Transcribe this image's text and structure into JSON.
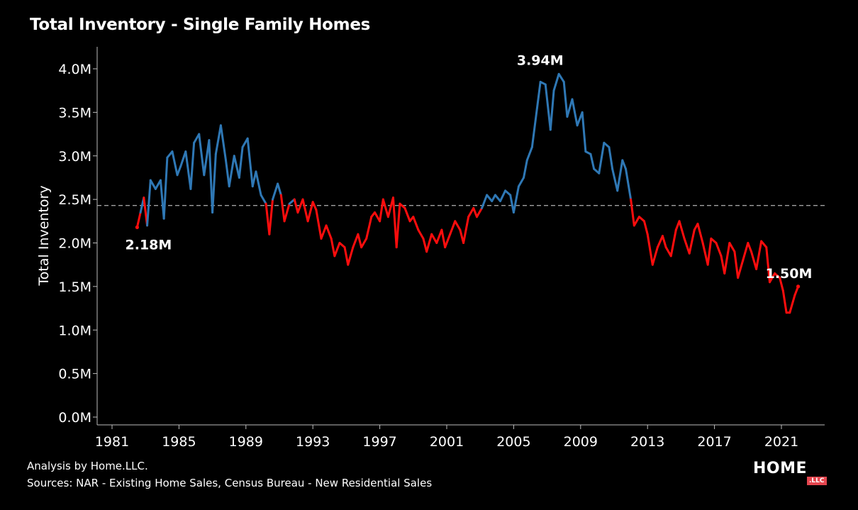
{
  "chart_data": {
    "type": "line",
    "title": "Total Inventory - Single Family Homes",
    "ylabel": "Total Inventory",
    "xlabel": "",
    "x_range": [
      1980.5,
      2024.4
    ],
    "ylim": [
      0,
      4.3
    ],
    "y_ticks": [
      {
        "value": 0.0,
        "label": "0.0M"
      },
      {
        "value": 0.5,
        "label": "0.5M"
      },
      {
        "value": 1.0,
        "label": "1.0M"
      },
      {
        "value": 1.5,
        "label": "1.5M"
      },
      {
        "value": 2.0,
        "label": "2.0M"
      },
      {
        "value": 2.5,
        "label": "2.5M"
      },
      {
        "value": 3.0,
        "label": "3.0M"
      },
      {
        "value": 3.5,
        "label": "3.5M"
      },
      {
        "value": 4.0,
        "label": "4.0M"
      }
    ],
    "x_ticks": [
      {
        "value": 1981,
        "label": "1981"
      },
      {
        "value": 1985,
        "label": "1985"
      },
      {
        "value": 1989,
        "label": "1989"
      },
      {
        "value": 1993,
        "label": "1993"
      },
      {
        "value": 1997,
        "label": "1997"
      },
      {
        "value": 2001,
        "label": "2001"
      },
      {
        "value": 2005,
        "label": "2005"
      },
      {
        "value": 2009,
        "label": "2009"
      },
      {
        "value": 2013,
        "label": "2013"
      },
      {
        "value": 2017,
        "label": "2017"
      },
      {
        "value": 2021,
        "label": "2021"
      }
    ],
    "reference_line": 2.43,
    "colors": {
      "above": "#2f78b5",
      "below": "#ff0d0d",
      "reference": "#a0a0a0"
    },
    "annotations": [
      {
        "label": "2.18M",
        "x": 1982.5,
        "y": 2.18
      },
      {
        "label": "3.94M",
        "x": 2007.6,
        "y": 3.94
      },
      {
        "label": "1.50M",
        "x": 2021.7,
        "y": 1.5
      }
    ],
    "series": [
      {
        "points": [
          [
            1982.5,
            2.18
          ],
          [
            1982.7,
            2.35
          ],
          [
            1982.9,
            2.52
          ],
          [
            1983.1,
            2.2
          ],
          [
            1983.3,
            2.72
          ],
          [
            1983.6,
            2.62
          ],
          [
            1983.9,
            2.72
          ],
          [
            1984.1,
            2.28
          ],
          [
            1984.3,
            2.98
          ],
          [
            1984.6,
            3.05
          ],
          [
            1984.9,
            2.78
          ],
          [
            1985.1,
            2.88
          ],
          [
            1985.4,
            3.05
          ],
          [
            1985.7,
            2.62
          ],
          [
            1985.9,
            3.15
          ],
          [
            1986.2,
            3.25
          ],
          [
            1986.5,
            2.78
          ],
          [
            1986.8,
            3.18
          ],
          [
            1987.0,
            2.35
          ],
          [
            1987.2,
            3.02
          ],
          [
            1987.5,
            3.35
          ],
          [
            1987.8,
            2.95
          ],
          [
            1988.0,
            2.65
          ],
          [
            1988.3,
            3.0
          ],
          [
            1988.6,
            2.75
          ],
          [
            1988.8,
            3.1
          ],
          [
            1989.1,
            3.2
          ],
          [
            1989.4,
            2.65
          ],
          [
            1989.6,
            2.82
          ],
          [
            1989.9,
            2.55
          ],
          [
            1990.2,
            2.45
          ],
          [
            1990.4,
            2.1
          ],
          [
            1990.6,
            2.5
          ],
          [
            1990.9,
            2.68
          ],
          [
            1991.1,
            2.55
          ],
          [
            1991.3,
            2.25
          ],
          [
            1991.6,
            2.45
          ],
          [
            1991.9,
            2.5
          ],
          [
            1992.1,
            2.35
          ],
          [
            1992.4,
            2.5
          ],
          [
            1992.7,
            2.25
          ],
          [
            1993.0,
            2.47
          ],
          [
            1993.2,
            2.38
          ],
          [
            1993.5,
            2.05
          ],
          [
            1993.8,
            2.2
          ],
          [
            1994.1,
            2.05
          ],
          [
            1994.3,
            1.85
          ],
          [
            1994.6,
            2.0
          ],
          [
            1994.9,
            1.95
          ],
          [
            1995.1,
            1.75
          ],
          [
            1995.4,
            1.95
          ],
          [
            1995.7,
            2.1
          ],
          [
            1995.9,
            1.95
          ],
          [
            1996.2,
            2.05
          ],
          [
            1996.5,
            2.3
          ],
          [
            1996.7,
            2.35
          ],
          [
            1997.0,
            2.25
          ],
          [
            1997.2,
            2.5
          ],
          [
            1997.5,
            2.3
          ],
          [
            1997.8,
            2.52
          ],
          [
            1998.0,
            1.95
          ],
          [
            1998.2,
            2.45
          ],
          [
            1998.5,
            2.4
          ],
          [
            1998.8,
            2.25
          ],
          [
            1999.0,
            2.3
          ],
          [
            1999.3,
            2.15
          ],
          [
            1999.6,
            2.05
          ],
          [
            1999.8,
            1.9
          ],
          [
            2000.1,
            2.1
          ],
          [
            2000.4,
            2.0
          ],
          [
            2000.7,
            2.15
          ],
          [
            2000.9,
            1.95
          ],
          [
            2001.2,
            2.1
          ],
          [
            2001.5,
            2.25
          ],
          [
            2001.8,
            2.15
          ],
          [
            2002.0,
            2.0
          ],
          [
            2002.3,
            2.3
          ],
          [
            2002.6,
            2.4
          ],
          [
            2002.8,
            2.3
          ],
          [
            2003.1,
            2.4
          ],
          [
            2003.4,
            2.55
          ],
          [
            2003.7,
            2.48
          ],
          [
            2003.9,
            2.55
          ],
          [
            2004.2,
            2.48
          ],
          [
            2004.5,
            2.6
          ],
          [
            2004.8,
            2.55
          ],
          [
            2005.0,
            2.35
          ],
          [
            2005.3,
            2.65
          ],
          [
            2005.6,
            2.75
          ],
          [
            2005.8,
            2.95
          ],
          [
            2006.1,
            3.1
          ],
          [
            2006.4,
            3.55
          ],
          [
            2006.6,
            3.85
          ],
          [
            2006.9,
            3.82
          ],
          [
            2007.2,
            3.3
          ],
          [
            2007.4,
            3.75
          ],
          [
            2007.7,
            3.94
          ],
          [
            2008.0,
            3.85
          ],
          [
            2008.2,
            3.45
          ],
          [
            2008.5,
            3.65
          ],
          [
            2008.8,
            3.35
          ],
          [
            2009.1,
            3.5
          ],
          [
            2009.3,
            3.05
          ],
          [
            2009.6,
            3.02
          ],
          [
            2009.8,
            2.85
          ],
          [
            2010.1,
            2.8
          ],
          [
            2010.4,
            3.15
          ],
          [
            2010.7,
            3.1
          ],
          [
            2010.9,
            2.85
          ],
          [
            2011.2,
            2.6
          ],
          [
            2011.5,
            2.95
          ],
          [
            2011.7,
            2.85
          ],
          [
            2012.0,
            2.5
          ],
          [
            2012.2,
            2.2
          ],
          [
            2012.5,
            2.3
          ],
          [
            2012.8,
            2.25
          ],
          [
            2013.0,
            2.1
          ],
          [
            2013.3,
            1.75
          ],
          [
            2013.6,
            1.95
          ],
          [
            2013.9,
            2.08
          ],
          [
            2014.1,
            1.95
          ],
          [
            2014.4,
            1.85
          ],
          [
            2014.7,
            2.15
          ],
          [
            2014.9,
            2.25
          ],
          [
            2015.2,
            2.05
          ],
          [
            2015.5,
            1.88
          ],
          [
            2015.8,
            2.15
          ],
          [
            2016.0,
            2.22
          ],
          [
            2016.3,
            2.0
          ],
          [
            2016.6,
            1.75
          ],
          [
            2016.8,
            2.05
          ],
          [
            2017.1,
            2.0
          ],
          [
            2017.4,
            1.85
          ],
          [
            2017.6,
            1.65
          ],
          [
            2017.9,
            2.0
          ],
          [
            2018.2,
            1.9
          ],
          [
            2018.4,
            1.6
          ],
          [
            2018.7,
            1.8
          ],
          [
            2019.0,
            2.0
          ],
          [
            2019.2,
            1.9
          ],
          [
            2019.5,
            1.7
          ],
          [
            2019.8,
            2.02
          ],
          [
            2020.1,
            1.95
          ],
          [
            2020.3,
            1.55
          ],
          [
            2020.6,
            1.65
          ],
          [
            2020.9,
            1.6
          ],
          [
            2021.1,
            1.45
          ],
          [
            2021.3,
            1.2
          ],
          [
            2021.5,
            1.2
          ],
          [
            2021.8,
            1.4
          ],
          [
            2022.0,
            1.5
          ]
        ]
      }
    ]
  },
  "footer": {
    "analysis": "Analysis by Home.LLC.",
    "sources": "Sources: NAR - Existing Home Sales, Census Bureau - New Residential Sales"
  },
  "logo": {
    "word": "HOME",
    "suffix": ".LLC"
  }
}
